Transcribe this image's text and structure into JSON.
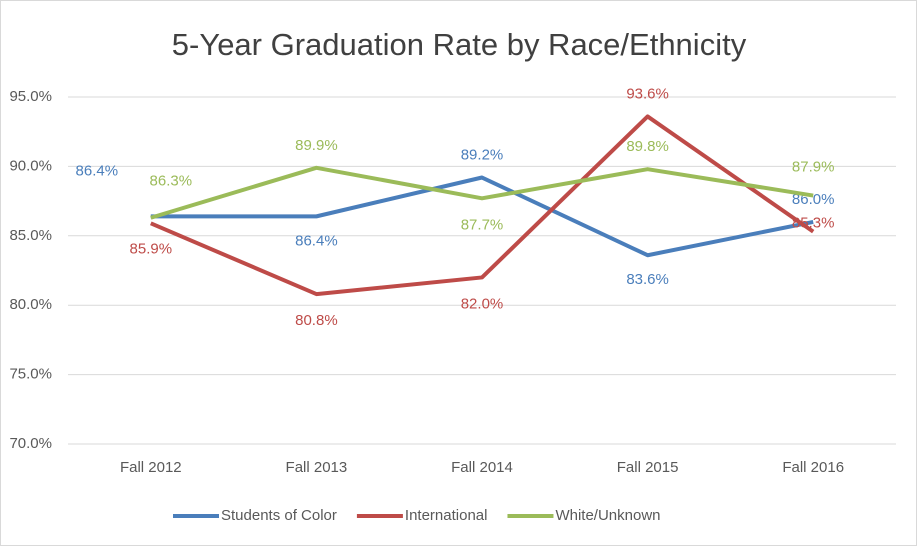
{
  "chart_data": {
    "type": "line",
    "title": "5-Year Graduation Rate by Race/Ethnicity",
    "categories": [
      "Fall 2012",
      "Fall 2013",
      "Fall 2014",
      "Fall 2015",
      "Fall 2016"
    ],
    "series": [
      {
        "name": "Students of Color",
        "color": "#4a7ebb",
        "values": [
          86.4,
          86.4,
          89.2,
          83.6,
          86.0
        ],
        "value_labels": [
          "86.4%",
          "86.4%",
          "89.2%",
          "83.6%",
          "86.0%"
        ]
      },
      {
        "name": "International",
        "color": "#be4b48",
        "values": [
          85.9,
          80.8,
          82.0,
          93.6,
          85.3
        ],
        "value_labels": [
          "85.9%",
          "80.8%",
          "82.0%",
          "93.6%",
          "85.3%"
        ]
      },
      {
        "name": "White/Unknown",
        "color": "#9bbb59",
        "values": [
          86.3,
          89.9,
          87.7,
          89.8,
          87.9
        ],
        "value_labels": [
          "86.3%",
          "89.9%",
          "87.7%",
          "89.8%",
          "87.9%"
        ]
      }
    ],
    "ylim": [
      70,
      95
    ],
    "yticks": [
      {
        "value": 70,
        "label": "70.0%"
      },
      {
        "value": 75,
        "label": "75.0%"
      },
      {
        "value": 80,
        "label": "80.0%"
      },
      {
        "value": 85,
        "label": "85.0%"
      },
      {
        "value": 90,
        "label": "90.0%"
      },
      {
        "value": 95,
        "label": "95.0%"
      }
    ],
    "grid": true,
    "legend": "bottom"
  }
}
